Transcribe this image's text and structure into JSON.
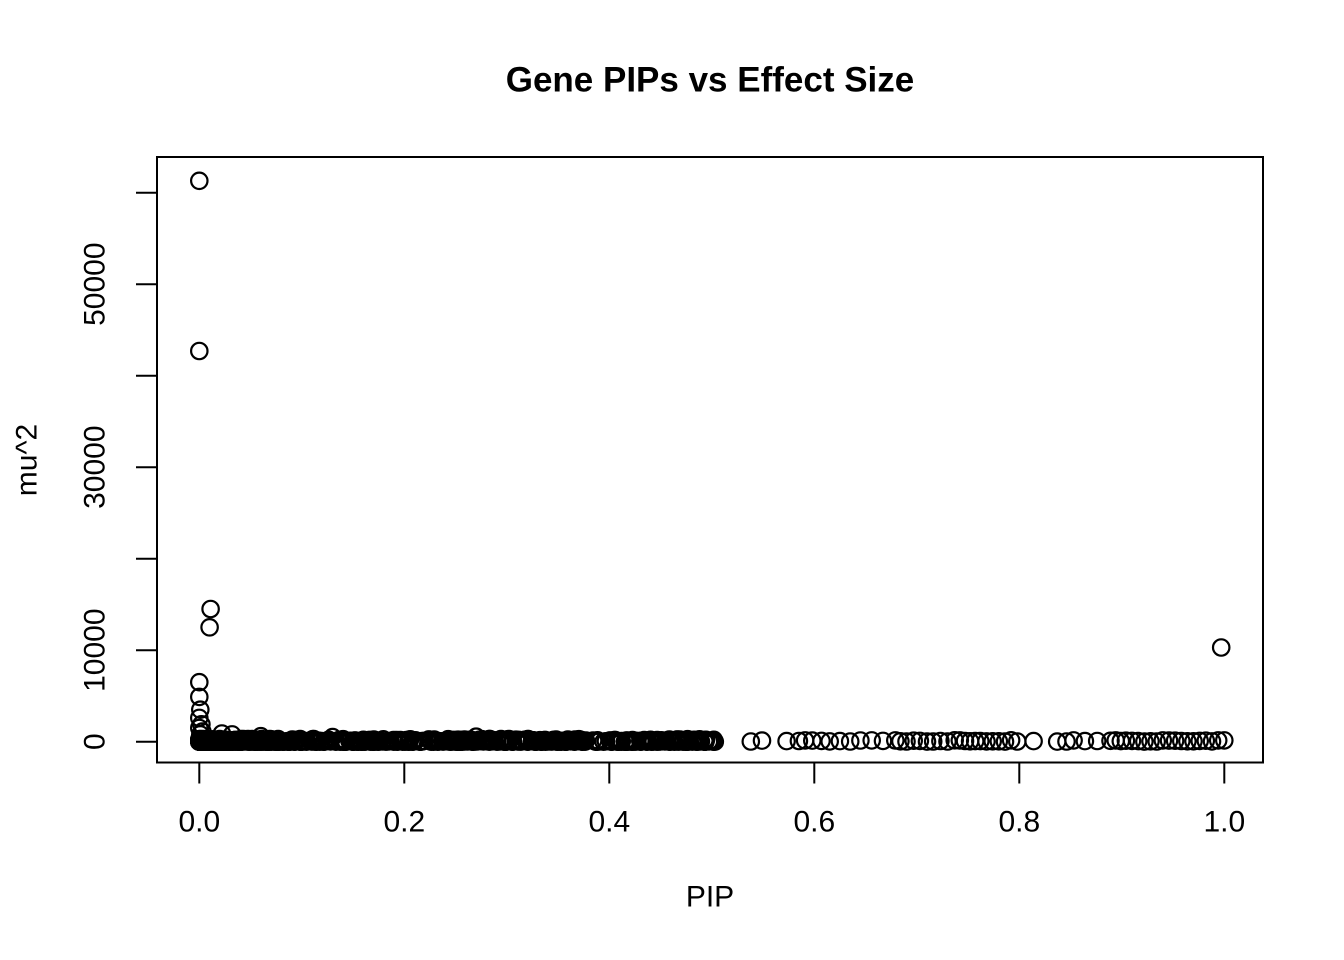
{
  "chart_data": {
    "type": "scatter",
    "title": "Gene PIPs vs Effect Size",
    "xlabel": "PIP",
    "ylabel": "mu^2",
    "xlim": [
      -0.04,
      1.04
    ],
    "ylim": [
      -2400,
      63900
    ],
    "grid": false,
    "legend": null,
    "marker": {
      "shape": "open-circle",
      "color": "#000000"
    },
    "background_color": "#ffffff",
    "x_ticks": {
      "values": [
        0.0,
        0.2,
        0.4,
        0.6,
        0.8,
        1.0
      ],
      "labels": [
        "0.0",
        "0.2",
        "0.4",
        "0.6",
        "0.8",
        "1.0"
      ]
    },
    "y_ticks": {
      "values": [
        0,
        10000,
        20000,
        30000,
        40000,
        50000,
        60000
      ],
      "labels": [
        "0",
        "10000",
        "",
        "30000",
        "",
        "50000",
        ""
      ]
    },
    "outlier_points": [
      {
        "pip": 0.0,
        "mu2": 61300
      },
      {
        "pip": 0.0,
        "mu2": 42700
      },
      {
        "pip": 0.011,
        "mu2": 14500
      },
      {
        "pip": 0.01,
        "mu2": 12500
      },
      {
        "pip": 0.997,
        "mu2": 10300
      },
      {
        "pip": 0.0,
        "mu2": 6500
      },
      {
        "pip": 0.0,
        "mu2": 4900
      },
      {
        "pip": 0.001,
        "mu2": 3500
      },
      {
        "pip": 0.0,
        "mu2": 2600
      },
      {
        "pip": 0.002,
        "mu2": 1900
      },
      {
        "pip": 0.0,
        "mu2": 1500
      },
      {
        "pip": 0.003,
        "mu2": 1100
      },
      {
        "pip": 0.001,
        "mu2": 800
      },
      {
        "pip": 0.022,
        "mu2": 900
      },
      {
        "pip": 0.032,
        "mu2": 800
      },
      {
        "pip": 0.06,
        "mu2": 600
      },
      {
        "pip": 0.13,
        "mu2": 500
      },
      {
        "pip": 0.27,
        "mu2": 550
      }
    ],
    "near_zero_points_pip": [
      0.538,
      0.549,
      0.573,
      0.585,
      0.591,
      0.598,
      0.607,
      0.615,
      0.625,
      0.635,
      0.645,
      0.656,
      0.667,
      0.679,
      0.684,
      0.69,
      0.697,
      0.703,
      0.71,
      0.716,
      0.723,
      0.73,
      0.737,
      0.742,
      0.747,
      0.752,
      0.757,
      0.762,
      0.768,
      0.774,
      0.78,
      0.786,
      0.792,
      0.798,
      0.814,
      0.837,
      0.846,
      0.853,
      0.864,
      0.876,
      0.889,
      0.894,
      0.899,
      0.904,
      0.91,
      0.916,
      0.922,
      0.928,
      0.934,
      0.94,
      0.946,
      0.952,
      0.958,
      0.964,
      0.97,
      0.976,
      0.982,
      0.988,
      0.994,
      1.0
    ],
    "dense_band": {
      "description": "solid mass of overlapping open circles with mu^2 near 0",
      "pip_min": 0.0,
      "pip_max": 0.505,
      "mu2_max": 300,
      "count": 680,
      "seed": 42
    }
  }
}
